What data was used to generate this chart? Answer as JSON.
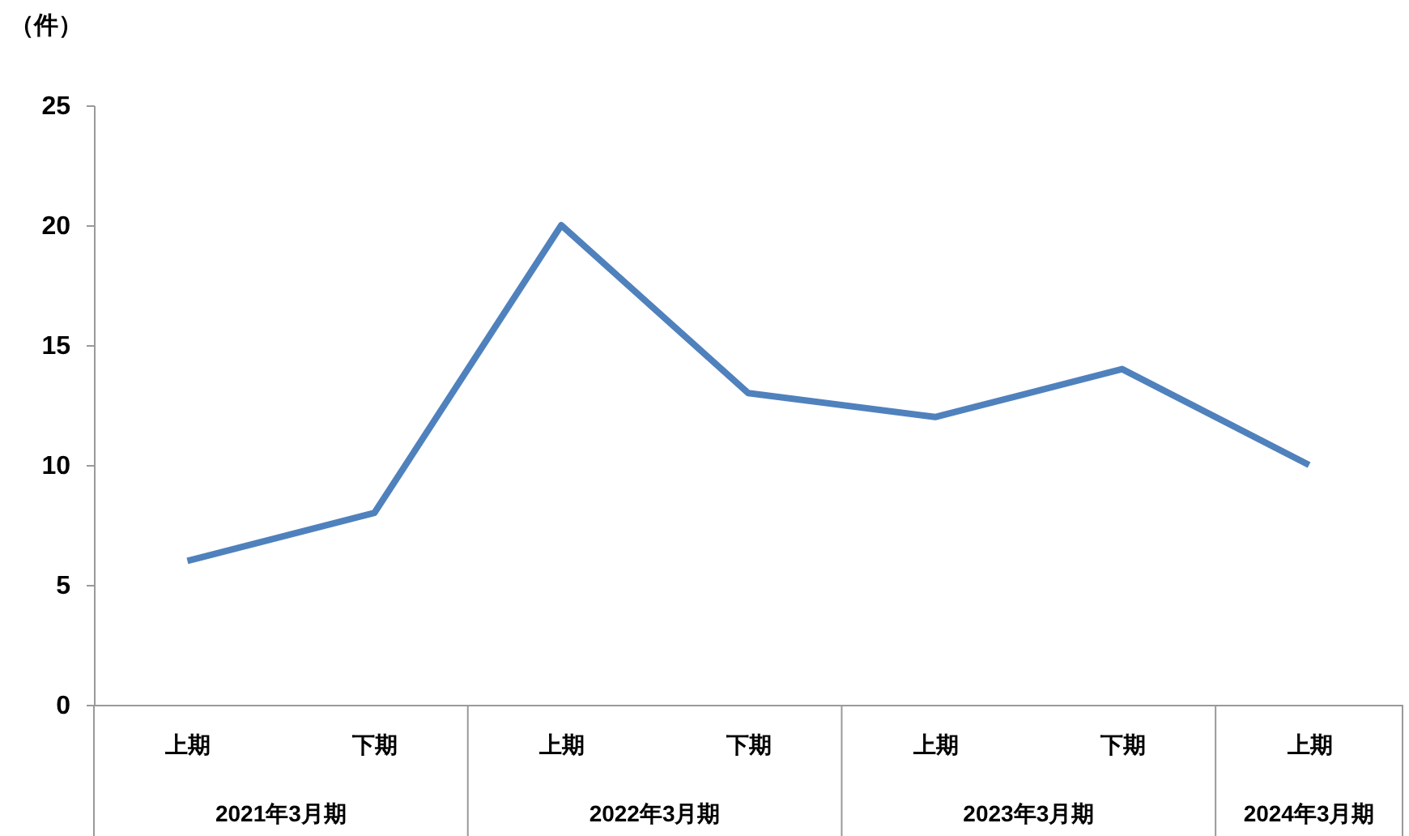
{
  "chart_data": {
    "type": "line",
    "ylabel": "（件）",
    "categories": [
      "上期",
      "下期",
      "上期",
      "下期",
      "上期",
      "下期",
      "上期"
    ],
    "series": [
      {
        "color": "#4f81bd",
        "values": [
          6,
          8,
          20,
          13,
          12,
          14,
          10
        ]
      }
    ],
    "ylim": [
      0,
      25
    ],
    "yticks": [
      0,
      5,
      10,
      15,
      20,
      25
    ],
    "grid": false,
    "legend": false,
    "marker": "none",
    "line_style": "solid",
    "annotations": [
      "2021年3月期",
      "2022年3月期",
      "2023年3月期",
      "2024年3月期"
    ]
  }
}
